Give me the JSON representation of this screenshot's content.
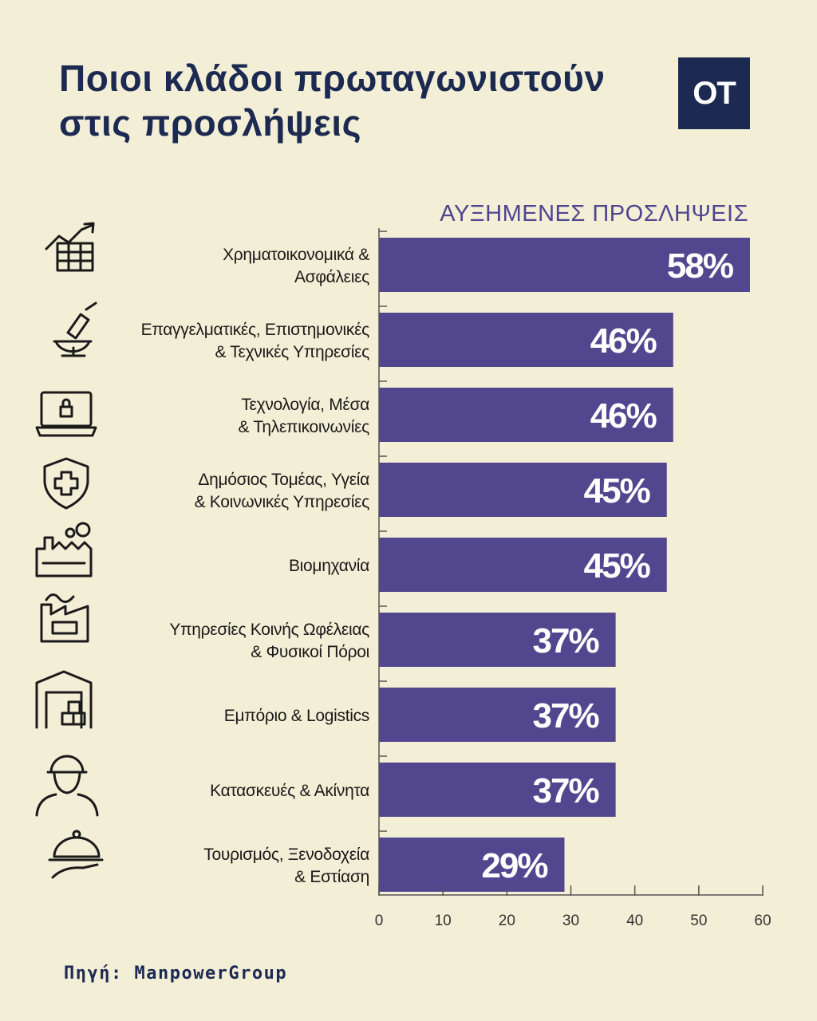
{
  "title_line1": "Ποιοι κλάδοι πρωταγωνιστούν",
  "title_line2": "στις προσλήψεις",
  "logo_text": "OT",
  "source": "Πηγή: ManpowerGroup",
  "colors": {
    "bar": "#52478f",
    "title": "#1c2a52",
    "header": "#4e4590",
    "background": "#f3eed6",
    "icon": "#1a1a1a"
  },
  "chart_data": {
    "type": "bar",
    "orientation": "horizontal",
    "series_label": "ΑΥΞΗΜΕΝΕΣ ΠΡΟΣΛΗΨΕΙΣ",
    "categories": [
      [
        "Χρηματοικονομικά &",
        "Ασφάλειες"
      ],
      [
        "Επαγγελματικές, Επιστημονικές",
        "& Τεχνικές Υπηρεσίες"
      ],
      [
        "Τεχνολογία, Μέσα",
        "& Τηλεπικοινωνίες"
      ],
      [
        "Δημόσιος Τομέας, Υγεία",
        "& Κοινωνικές Υπηρεσίες"
      ],
      [
        "Βιομηχανία"
      ],
      [
        "Υπηρεσίες Κοινής Ωφέλειας",
        "& Φυσικοί Πόροι"
      ],
      [
        "Εμπόριο & Logistics"
      ],
      [
        "Κατασκευές & Ακίνητα"
      ],
      [
        "Τουρισμός, Ξενοδοχεία",
        "& Εστίαση"
      ]
    ],
    "values": [
      58,
      46,
      46,
      45,
      45,
      37,
      37,
      37,
      29
    ],
    "value_labels": [
      "58%",
      "46%",
      "46%",
      "45%",
      "45%",
      "37%",
      "37%",
      "37%",
      "29%"
    ],
    "icons": [
      "finance-chart-icon",
      "microscope-icon",
      "laptop-lock-icon",
      "medical-shield-icon",
      "factory-icon",
      "utility-plant-icon",
      "warehouse-icon",
      "construction-worker-icon",
      "cloche-icon"
    ],
    "xlim": [
      0,
      60
    ],
    "xticks": [
      0,
      10,
      20,
      30,
      40,
      50,
      60
    ]
  }
}
